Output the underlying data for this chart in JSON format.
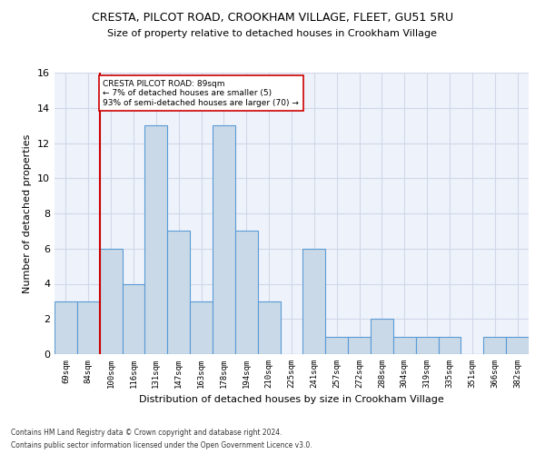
{
  "title": "CRESTA, PILCOT ROAD, CROOKHAM VILLAGE, FLEET, GU51 5RU",
  "subtitle": "Size of property relative to detached houses in Crookham Village",
  "xlabel": "Distribution of detached houses by size in Crookham Village",
  "ylabel": "Number of detached properties",
  "footer1": "Contains HM Land Registry data © Crown copyright and database right 2024.",
  "footer2": "Contains public sector information licensed under the Open Government Licence v3.0.",
  "categories": [
    "69sqm",
    "84sqm",
    "100sqm",
    "116sqm",
    "131sqm",
    "147sqm",
    "163sqm",
    "178sqm",
    "194sqm",
    "210sqm",
    "225sqm",
    "241sqm",
    "257sqm",
    "272sqm",
    "288sqm",
    "304sqm",
    "319sqm",
    "335sqm",
    "351sqm",
    "366sqm",
    "382sqm"
  ],
  "values": [
    3,
    3,
    6,
    4,
    13,
    7,
    3,
    13,
    7,
    3,
    0,
    6,
    1,
    1,
    2,
    1,
    1,
    1,
    0,
    1,
    1
  ],
  "bar_color": "#c9d9e8",
  "bar_edge_color": "#5b9bd5",
  "property_line_color": "#cc0000",
  "annotation_text": "CRESTA PILCOT ROAD: 89sqm\n← 7% of detached houses are smaller (5)\n93% of semi-detached houses are larger (70) →",
  "annotation_box_color": "#cc0000",
  "ylim": [
    0,
    16
  ],
  "yticks": [
    0,
    2,
    4,
    6,
    8,
    10,
    12,
    14,
    16
  ],
  "grid_color": "#d0d8e8",
  "bg_color": "#eef2fb",
  "bar_width": 1.0
}
